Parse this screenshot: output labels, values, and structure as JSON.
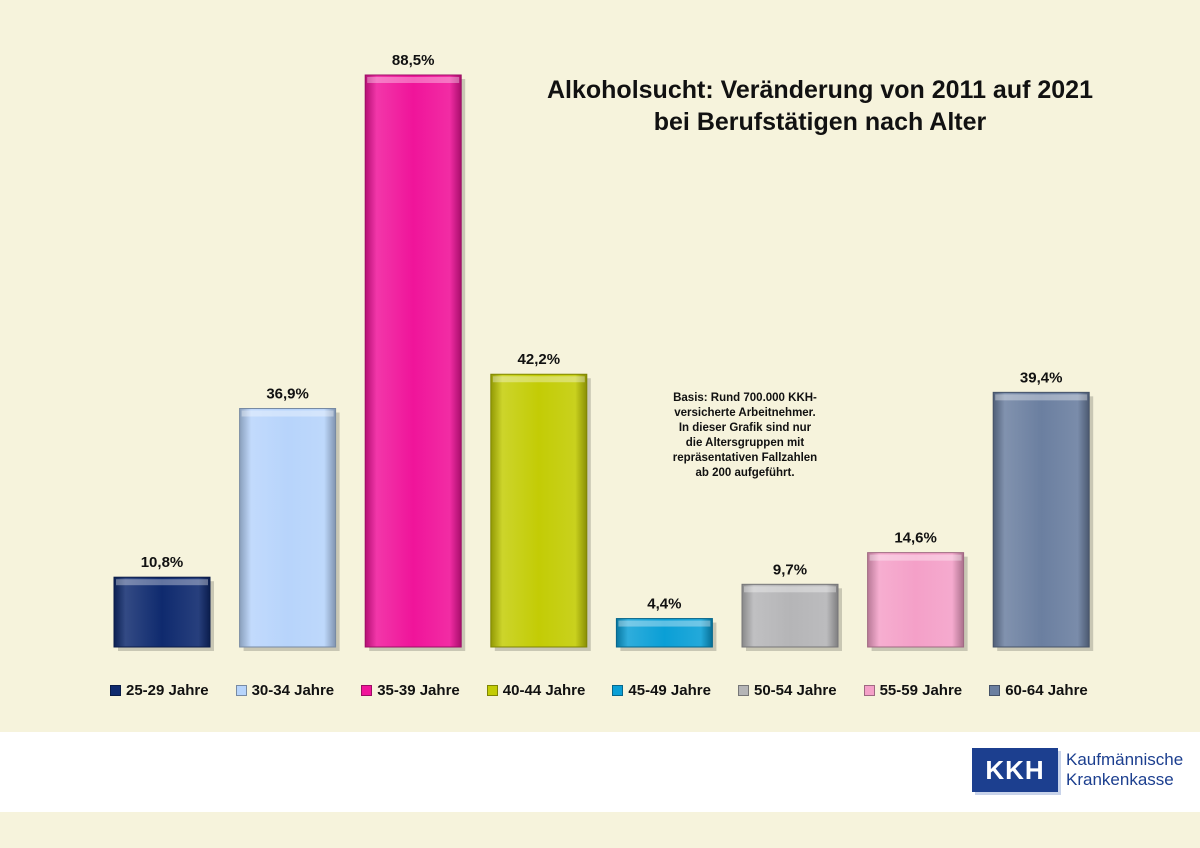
{
  "chart_data": {
    "type": "bar",
    "title_lines": [
      "Alkoholsucht: Veränderung von 2011 auf 2021",
      "bei Berufstätigen nach Alter"
    ],
    "categories": [
      "25-29 Jahre",
      "30-34 Jahre",
      "35-39 Jahre",
      "40-44 Jahre",
      "45-49 Jahre",
      "50-54 Jahre",
      "55-59 Jahre",
      "60-64 Jahre"
    ],
    "values": [
      10.8,
      36.9,
      88.5,
      42.2,
      4.4,
      9.7,
      14.6,
      39.4
    ],
    "value_labels": [
      "10,8%",
      "36,9%",
      "88,5%",
      "42,2%",
      "4,4%",
      "9,7%",
      "14,6%",
      "39,4%"
    ],
    "colors": [
      "#0f2a6e",
      "#b7d4fb",
      "#f0149a",
      "#c3cc05",
      "#0a9fd6",
      "#b5b5b7",
      "#f4a0c8",
      "#6b7fa0"
    ],
    "ylim": [
      0,
      88.5
    ],
    "legend_position": "bottom",
    "grid": false,
    "note_lines": [
      "Basis: Rund 700.000 KKH-",
      "versicherte Arbeitnehmer.",
      "In dieser Grafik sind nur",
      "die Altersgruppen mit",
      "repräsentativen Fallzahlen",
      "ab 200 aufgeführt."
    ]
  },
  "logo": {
    "abbr": "KKH",
    "name_lines": [
      "Kaufmännische",
      "Krankenkasse"
    ]
  }
}
